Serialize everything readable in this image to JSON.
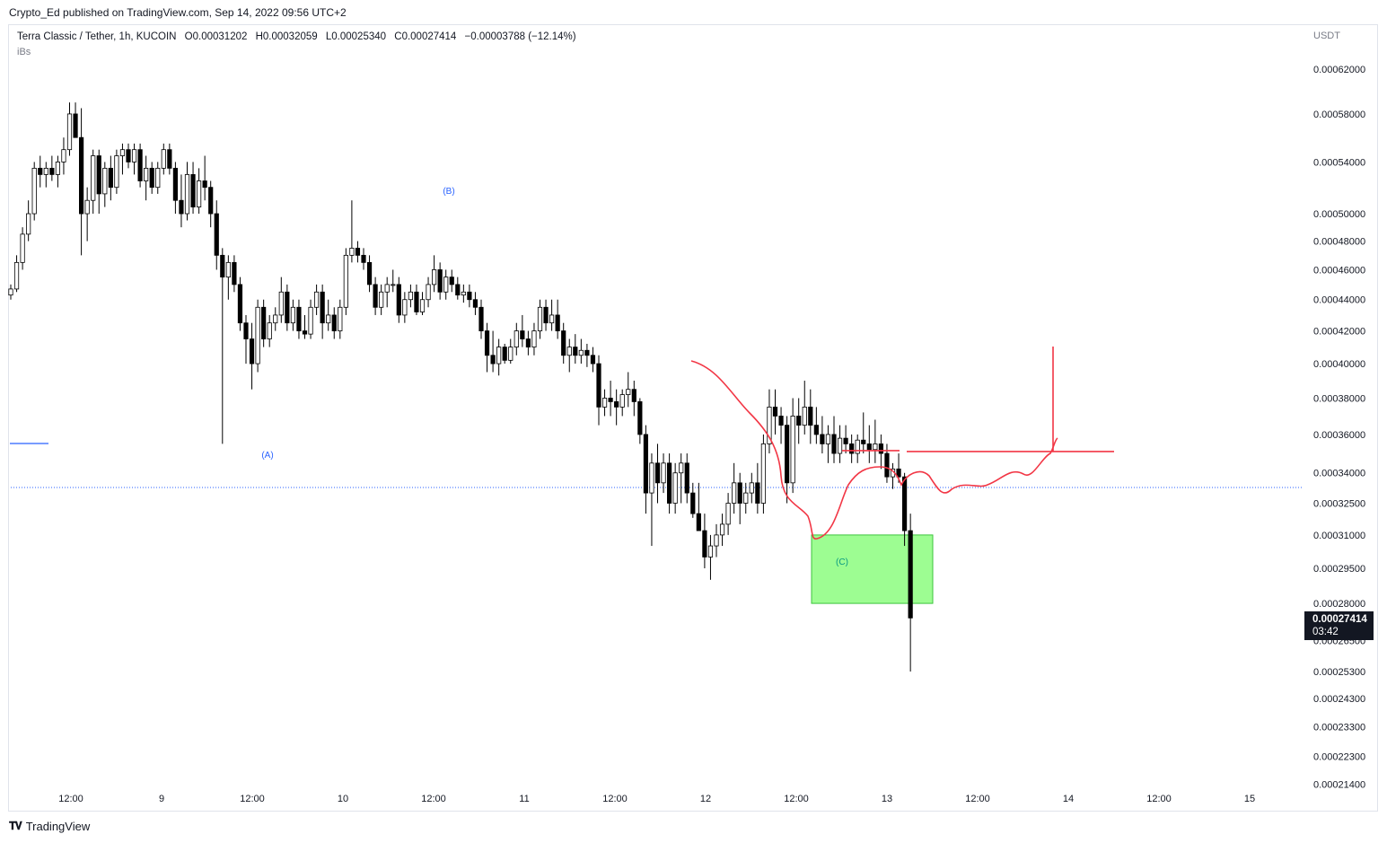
{
  "header": {
    "published": "Crypto_Ed published on TradingView.com, Sep 14, 2022 09:56 UTC+2"
  },
  "legend": {
    "symbol": "Terra Classic / Tether, 1h, KUCOIN",
    "o_key": "O",
    "o_val": "0.00031202",
    "h_key": "H",
    "h_val": "0.00032059",
    "l_key": "L",
    "l_val": "0.00025340",
    "c_key": "C",
    "c_val": "0.00027414",
    "change": "−0.00003788 (−12.14%)",
    "indicator": "iBs"
  },
  "axis": {
    "currency": "USDT"
  },
  "last_price": {
    "value": "0.00027414",
    "timer": "03:42"
  },
  "footer": {
    "brand": "TradingView"
  },
  "colors": {
    "up_candle": "#ffffff",
    "down_candle": "#000000",
    "candle_border": "#000000",
    "annotation_red": "#f23645",
    "zone_green": "#7cfc6e",
    "wave_label_blue": "#2962ff",
    "wave_label_teal": "#089981",
    "last_price_line": "#2962ff"
  },
  "chart_data": {
    "type": "candlestick",
    "y_scale": "log",
    "y_ticks": [
      "0.00062000",
      "0.00058000",
      "0.00054000",
      "0.00050000",
      "0.00048000",
      "0.00046000",
      "0.00044000",
      "0.00042000",
      "0.00040000",
      "0.00038000",
      "0.00036000",
      "0.00034000",
      "0.00032500",
      "0.00031000",
      "0.00029500",
      "0.00028000",
      "0.00026500",
      "0.00025300",
      "0.00024300",
      "0.00023300",
      "0.00022300",
      "0.00021400"
    ],
    "x_ticks": [
      "12:00",
      "9",
      "12:00",
      "10",
      "12:00",
      "11",
      "12:00",
      "12",
      "12:00",
      "13",
      "12:00",
      "14",
      "12:00",
      "15"
    ],
    "wave_labels": [
      {
        "text": "(A)",
        "price": 0.000354
      },
      {
        "text": "(B)",
        "price": 0.000525
      },
      {
        "text": "(C)",
        "price": 0.000296
      }
    ],
    "zone": {
      "from_price": 0.00028,
      "to_price": 0.00031
    },
    "resistance_level": 0.000351,
    "last_close": 0.00027414,
    "candles": [
      [
        0.000443,
        0.00045,
        0.00044,
        0.000447
      ],
      [
        0.000447,
        0.00047,
        0.000445,
        0.000465
      ],
      [
        0.000465,
        0.00049,
        0.00046,
        0.000485
      ],
      [
        0.000485,
        0.00051,
        0.00048,
        0.0005
      ],
      [
        0.0005,
        0.00054,
        0.000495,
        0.000535
      ],
      [
        0.000535,
        0.000545,
        0.00052,
        0.00053
      ],
      [
        0.00053,
        0.00054,
        0.00052,
        0.000535
      ],
      [
        0.000535,
        0.000545,
        0.000525,
        0.00053
      ],
      [
        0.00053,
        0.000545,
        0.00052,
        0.00054
      ],
      [
        0.00054,
        0.00056,
        0.00053,
        0.00055
      ],
      [
        0.00055,
        0.00059,
        0.000545,
        0.00058
      ],
      [
        0.00058,
        0.00059,
        0.00056,
        0.00056
      ],
      [
        0.00056,
        0.000585,
        0.00047,
        0.0005
      ],
      [
        0.0005,
        0.00052,
        0.00048,
        0.00051
      ],
      [
        0.00051,
        0.00055,
        0.0005,
        0.000545
      ],
      [
        0.000545,
        0.00055,
        0.0005,
        0.000515
      ],
      [
        0.000515,
        0.00054,
        0.000505,
        0.000535
      ],
      [
        0.000535,
        0.000545,
        0.00051,
        0.00052
      ],
      [
        0.00052,
        0.00055,
        0.000515,
        0.000545
      ],
      [
        0.000545,
        0.000555,
        0.00053,
        0.00055
      ],
      [
        0.00055,
        0.000555,
        0.000535,
        0.00054
      ],
      [
        0.00054,
        0.000555,
        0.00053,
        0.00055
      ],
      [
        0.00055,
        0.000555,
        0.00052,
        0.000525
      ],
      [
        0.000525,
        0.000545,
        0.00051,
        0.000535
      ],
      [
        0.000535,
        0.00054,
        0.000515,
        0.00052
      ],
      [
        0.00052,
        0.00054,
        0.000515,
        0.000535
      ],
      [
        0.000535,
        0.000555,
        0.00053,
        0.00055
      ],
      [
        0.00055,
        0.000555,
        0.00053,
        0.000535
      ],
      [
        0.000535,
        0.00054,
        0.0005,
        0.00051
      ],
      [
        0.00051,
        0.00053,
        0.00049,
        0.0005
      ],
      [
        0.0005,
        0.00054,
        0.000495,
        0.00053
      ],
      [
        0.00053,
        0.00054,
        0.0005,
        0.000505
      ],
      [
        0.000505,
        0.000535,
        0.0005,
        0.000525
      ],
      [
        0.000525,
        0.000545,
        0.00051,
        0.00052
      ],
      [
        0.00052,
        0.000525,
        0.00049,
        0.0005
      ],
      [
        0.0005,
        0.00051,
        0.00046,
        0.00047
      ],
      [
        0.00047,
        0.000475,
        0.000355,
        0.000455
      ],
      [
        0.000455,
        0.00047,
        0.00044,
        0.000465
      ],
      [
        0.000465,
        0.00047,
        0.000445,
        0.00045
      ],
      [
        0.00045,
        0.000455,
        0.00042,
        0.000425
      ],
      [
        0.000425,
        0.00043,
        0.0004,
        0.000415
      ],
      [
        0.000415,
        0.000425,
        0.000385,
        0.0004
      ],
      [
        0.0004,
        0.00044,
        0.000395,
        0.000435
      ],
      [
        0.000435,
        0.00044,
        0.00041,
        0.000415
      ],
      [
        0.000415,
        0.00043,
        0.00041,
        0.000425
      ],
      [
        0.000425,
        0.000435,
        0.00042,
        0.00043
      ],
      [
        0.00043,
        0.000455,
        0.000425,
        0.000445
      ],
      [
        0.000445,
        0.00045,
        0.00042,
        0.000425
      ],
      [
        0.000425,
        0.00044,
        0.00042,
        0.000435
      ],
      [
        0.000435,
        0.00044,
        0.000415,
        0.00042
      ],
      [
        0.00042,
        0.00043,
        0.000415,
        0.000418
      ],
      [
        0.000418,
        0.00044,
        0.000415,
        0.000435
      ],
      [
        0.000435,
        0.00045,
        0.00043,
        0.000445
      ],
      [
        0.000445,
        0.00045,
        0.000415,
        0.000425
      ],
      [
        0.000425,
        0.00044,
        0.00042,
        0.00043
      ],
      [
        0.00043,
        0.000435,
        0.000415,
        0.00042
      ],
      [
        0.00042,
        0.00044,
        0.000415,
        0.000435
      ],
      [
        0.000435,
        0.000475,
        0.00043,
        0.00047
      ],
      [
        0.00047,
        0.00051,
        0.000465,
        0.000475
      ],
      [
        0.000475,
        0.00048,
        0.000465,
        0.00047
      ],
      [
        0.00047,
        0.000475,
        0.00046,
        0.000465
      ],
      [
        0.000465,
        0.00047,
        0.000445,
        0.00045
      ],
      [
        0.00045,
        0.000455,
        0.00043,
        0.000435
      ],
      [
        0.000435,
        0.00045,
        0.00043,
        0.000445
      ],
      [
        0.000445,
        0.000455,
        0.000435,
        0.00045
      ],
      [
        0.00045,
        0.00046,
        0.000445,
        0.00045
      ],
      [
        0.00045,
        0.000455,
        0.000425,
        0.00043
      ],
      [
        0.00043,
        0.000445,
        0.000425,
        0.00044
      ],
      [
        0.00044,
        0.00045,
        0.000435,
        0.000445
      ],
      [
        0.000445,
        0.00045,
        0.00043,
        0.000432
      ],
      [
        0.000432,
        0.000445,
        0.00043,
        0.00044
      ],
      [
        0.00044,
        0.000455,
        0.000435,
        0.00045
      ],
      [
        0.00045,
        0.00047,
        0.000445,
        0.00046
      ],
      [
        0.00046,
        0.000465,
        0.00044,
        0.000445
      ],
      [
        0.000445,
        0.00046,
        0.00044,
        0.000455
      ],
      [
        0.000455,
        0.00046,
        0.000445,
        0.00045
      ],
      [
        0.00045,
        0.000455,
        0.00044,
        0.000443
      ],
      [
        0.000443,
        0.00045,
        0.000438,
        0.000445
      ],
      [
        0.000445,
        0.00045,
        0.000435,
        0.00044
      ],
      [
        0.00044,
        0.000445,
        0.00043,
        0.000435
      ],
      [
        0.000435,
        0.00044,
        0.000415,
        0.00042
      ],
      [
        0.00042,
        0.000425,
        0.000395,
        0.000405
      ],
      [
        0.000405,
        0.00042,
        0.000395,
        0.0004
      ],
      [
        0.0004,
        0.000415,
        0.000393,
        0.00041
      ],
      [
        0.00041,
        0.000412,
        0.0004,
        0.000402
      ],
      [
        0.000402,
        0.000415,
        0.0004,
        0.00041
      ],
      [
        0.00041,
        0.000425,
        0.000405,
        0.00042
      ],
      [
        0.00042,
        0.00043,
        0.00041,
        0.000415
      ],
      [
        0.000415,
        0.00042,
        0.000405,
        0.00041
      ],
      [
        0.00041,
        0.000425,
        0.000405,
        0.00042
      ],
      [
        0.00042,
        0.00044,
        0.000415,
        0.000435
      ],
      [
        0.000435,
        0.00044,
        0.00042,
        0.000425
      ],
      [
        0.000425,
        0.00044,
        0.00042,
        0.00043
      ],
      [
        0.00043,
        0.00044,
        0.000415,
        0.00042
      ],
      [
        0.00042,
        0.000425,
        0.0004,
        0.000405
      ],
      [
        0.000405,
        0.000415,
        0.000395,
        0.00041
      ],
      [
        0.00041,
        0.000418,
        0.0004,
        0.000405
      ],
      [
        0.000405,
        0.000415,
        0.0004,
        0.000408
      ],
      [
        0.000408,
        0.000412,
        0.000398,
        0.000405
      ],
      [
        0.000405,
        0.00041,
        0.000395,
        0.0004
      ],
      [
        0.0004,
        0.000405,
        0.000365,
        0.000375
      ],
      [
        0.000375,
        0.000385,
        0.00037,
        0.00038
      ],
      [
        0.00038,
        0.00039,
        0.00037,
        0.000378
      ],
      [
        0.000378,
        0.000385,
        0.000365,
        0.000375
      ],
      [
        0.000375,
        0.000385,
        0.00037,
        0.000382
      ],
      [
        0.000382,
        0.000395,
        0.000375,
        0.000385
      ],
      [
        0.000385,
        0.00039,
        0.00037,
        0.000378
      ],
      [
        0.000378,
        0.00038,
        0.000355,
        0.00036
      ],
      [
        0.00036,
        0.000365,
        0.00032,
        0.00033
      ],
      [
        0.00033,
        0.00035,
        0.000305,
        0.000345
      ],
      [
        0.000345,
        0.000355,
        0.000325,
        0.000335
      ],
      [
        0.000335,
        0.00035,
        0.00033,
        0.000345
      ],
      [
        0.000345,
        0.00035,
        0.00032,
        0.000325
      ],
      [
        0.000325,
        0.000345,
        0.00032,
        0.00034
      ],
      [
        0.00034,
        0.00035,
        0.000325,
        0.000345
      ],
      [
        0.000345,
        0.00035,
        0.000325,
        0.00033
      ],
      [
        0.00033,
        0.000335,
        0.000318,
        0.00032
      ],
      [
        0.00032,
        0.000335,
        0.000315,
        0.000312
      ],
      [
        0.000312,
        0.00032,
        0.000295,
        0.0003
      ],
      [
        0.0003,
        0.00031,
        0.00029,
        0.000305
      ],
      [
        0.000305,
        0.000315,
        0.0003,
        0.00031
      ],
      [
        0.00031,
        0.00032,
        0.000305,
        0.000315
      ],
      [
        0.000315,
        0.00033,
        0.00031,
        0.000325
      ],
      [
        0.000325,
        0.000345,
        0.00032,
        0.000335
      ],
      [
        0.000335,
        0.00034,
        0.000315,
        0.000325
      ],
      [
        0.000325,
        0.000335,
        0.00032,
        0.00033
      ],
      [
        0.00033,
        0.00034,
        0.000325,
        0.000335
      ],
      [
        0.000335,
        0.000345,
        0.00032,
        0.000325
      ],
      [
        0.000325,
        0.00036,
        0.00032,
        0.000355
      ],
      [
        0.000355,
        0.000385,
        0.00035,
        0.000375
      ],
      [
        0.000375,
        0.000385,
        0.00036,
        0.00037
      ],
      [
        0.00037,
        0.000375,
        0.000355,
        0.000365
      ],
      [
        0.000365,
        0.00037,
        0.000325,
        0.000335
      ],
      [
        0.000335,
        0.00038,
        0.00033,
        0.00037
      ],
      [
        0.00037,
        0.00038,
        0.000355,
        0.000365
      ],
      [
        0.000365,
        0.00039,
        0.00036,
        0.000375
      ],
      [
        0.000375,
        0.000385,
        0.000355,
        0.000365
      ],
      [
        0.000365,
        0.000375,
        0.000355,
        0.00036
      ],
      [
        0.00036,
        0.00037,
        0.00035,
        0.000355
      ],
      [
        0.000355,
        0.000365,
        0.000345,
        0.00036
      ],
      [
        0.00036,
        0.00037,
        0.000345,
        0.00035
      ],
      [
        0.00035,
        0.000365,
        0.000345,
        0.000358
      ],
      [
        0.000358,
        0.000365,
        0.00035,
        0.000355
      ],
      [
        0.000355,
        0.00036,
        0.000345,
        0.00035
      ],
      [
        0.00035,
        0.00036,
        0.000345,
        0.000357
      ],
      [
        0.000357,
        0.000372,
        0.00035,
        0.000355
      ],
      [
        0.000355,
        0.000365,
        0.000345,
        0.000352
      ],
      [
        0.000352,
        0.000368,
        0.000345,
        0.000355
      ],
      [
        0.000355,
        0.00036,
        0.000342,
        0.00035
      ],
      [
        0.00035,
        0.000355,
        0.000335,
        0.000338
      ],
      [
        0.000338,
        0.000345,
        0.000332,
        0.000342
      ],
      [
        0.000342,
        0.00035,
        0.000335,
        0.000338
      ],
      [
        0.000338,
        0.00034,
        0.000305,
        0.000312
      ],
      [
        0.000312,
        0.00032,
        0.000253,
        0.000274
      ]
    ]
  }
}
